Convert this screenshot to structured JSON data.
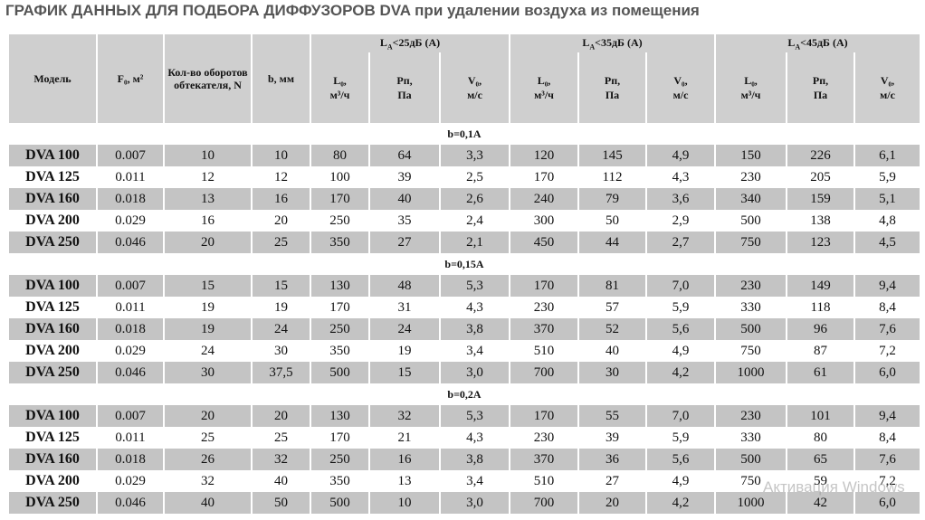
{
  "header": {
    "title": "ГРАФИК ДАННЫХ ДЛЯ ПОДБОРА ДИФФУЗОРОВ DVA при удалении воздуха из помещения"
  },
  "table": {
    "columns": [
      "Модель",
      "F₀, м²",
      "Кол-во оборотов обтекателя, N",
      "b, мм"
    ],
    "noise_groups": [
      {
        "symbol": "L",
        "subscript": "A",
        "condition": "<25дБ (A)",
        "subcolumns": [
          [
            "L₀,",
            "м³/ч"
          ],
          [
            "Рп,",
            "Па"
          ],
          [
            "V₀,",
            "м/с"
          ]
        ]
      },
      {
        "symbol": "L",
        "subscript": "A",
        "condition": "<35дБ (A)",
        "subcolumns": [
          [
            "L₀,",
            "м³/ч"
          ],
          [
            "Рп,",
            "Па"
          ],
          [
            "V₀,",
            "м/с"
          ]
        ]
      },
      {
        "symbol": "L",
        "subscript": "A",
        "condition": "<45дБ (A)",
        "subcolumns": [
          [
            "L₀,",
            "м³/ч"
          ],
          [
            "Рп,",
            "Па"
          ],
          [
            "V₀,",
            "м/с"
          ]
        ]
      }
    ],
    "sections": [
      {
        "label": "b=0,1A",
        "rows": [
          [
            "DVA 100",
            "0.007",
            "10",
            "10",
            "80",
            "64",
            "3,3",
            "120",
            "145",
            "4,9",
            "150",
            "226",
            "6,1"
          ],
          [
            "DVA 125",
            "0.011",
            "12",
            "12",
            "100",
            "39",
            "2,5",
            "170",
            "112",
            "4,3",
            "230",
            "205",
            "5,9"
          ],
          [
            "DVA 160",
            "0.018",
            "13",
            "16",
            "170",
            "40",
            "2,6",
            "240",
            "79",
            "3,6",
            "340",
            "159",
            "5,1"
          ],
          [
            "DVA 200",
            "0.029",
            "16",
            "20",
            "250",
            "35",
            "2,4",
            "300",
            "50",
            "2,9",
            "500",
            "138",
            "4,8"
          ],
          [
            "DVA 250",
            "0.046",
            "20",
            "25",
            "350",
            "27",
            "2,1",
            "450",
            "44",
            "2,7",
            "750",
            "123",
            "4,5"
          ]
        ]
      },
      {
        "label": "b=0,15A",
        "rows": [
          [
            "DVA 100",
            "0.007",
            "15",
            "15",
            "130",
            "48",
            "5,3",
            "170",
            "81",
            "7,0",
            "230",
            "149",
            "9,4"
          ],
          [
            "DVA 125",
            "0.011",
            "19",
            "19",
            "170",
            "31",
            "4,3",
            "230",
            "57",
            "5,9",
            "330",
            "118",
            "8,4"
          ],
          [
            "DVA 160",
            "0.018",
            "19",
            "24",
            "250",
            "24",
            "3,8",
            "370",
            "52",
            "5,6",
            "500",
            "96",
            "7,6"
          ],
          [
            "DVA 200",
            "0.029",
            "24",
            "30",
            "350",
            "19",
            "3,4",
            "510",
            "40",
            "4,9",
            "750",
            "87",
            "7,2"
          ],
          [
            "DVA 250",
            "0.046",
            "30",
            "37,5",
            "500",
            "15",
            "3,0",
            "700",
            "30",
            "4,2",
            "1000",
            "61",
            "6,0"
          ]
        ]
      },
      {
        "label": "b=0,2A",
        "rows": [
          [
            "DVA 100",
            "0.007",
            "20",
            "20",
            "130",
            "32",
            "5,3",
            "170",
            "55",
            "7,0",
            "230",
            "101",
            "9,4"
          ],
          [
            "DVA 125",
            "0.011",
            "25",
            "25",
            "170",
            "21",
            "4,3",
            "230",
            "39",
            "5,9",
            "330",
            "80",
            "8,4"
          ],
          [
            "DVA 160",
            "0.018",
            "26",
            "32",
            "250",
            "16",
            "3,8",
            "370",
            "36",
            "5,6",
            "500",
            "65",
            "7,6"
          ],
          [
            "DVA 200",
            "0.029",
            "32",
            "40",
            "350",
            "13",
            "3,4",
            "510",
            "27",
            "4,9",
            "750",
            "59",
            "7,2"
          ],
          [
            "DVA 250",
            "0.046",
            "40",
            "50",
            "500",
            "10",
            "3,0",
            "700",
            "20",
            "4,2",
            "1000",
            "42",
            "6,0"
          ]
        ]
      }
    ]
  },
  "watermark": "Активация Windows"
}
